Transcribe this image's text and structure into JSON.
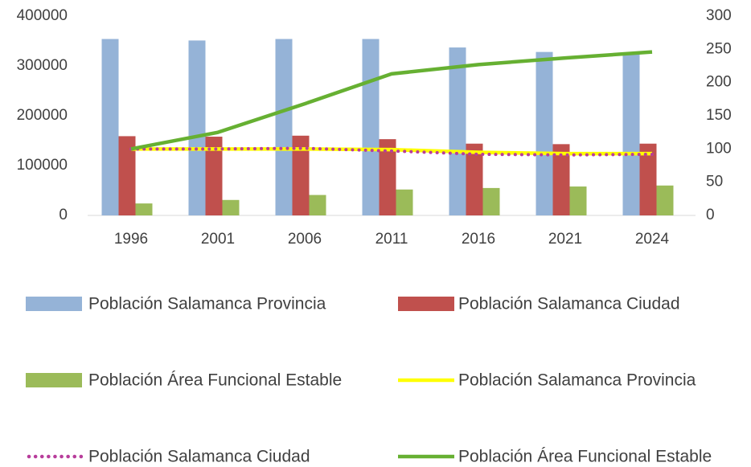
{
  "chart_data": {
    "type": "bar",
    "categories": [
      "1996",
      "2001",
      "2006",
      "2011",
      "2016",
      "2021",
      "2024"
    ],
    "ylim": [
      0,
      400000
    ],
    "yticks": [
      0,
      100000,
      200000,
      300000,
      400000
    ],
    "y2lim": [
      0,
      300
    ],
    "y2ticks": [
      0,
      50,
      100,
      150,
      200,
      250,
      300
    ],
    "grid": false,
    "series": [
      {
        "name": "Población Salamanca Provincia",
        "type": "bar",
        "color": "#95b3d7",
        "values": [
          354000,
          351000,
          354000,
          354000,
          337000,
          328000,
          327000
        ]
      },
      {
        "name": "Población Salamanca Ciudad",
        "type": "bar",
        "color": "#c0504d",
        "values": [
          159000,
          158000,
          160000,
          153000,
          144000,
          143000,
          144000
        ]
      },
      {
        "name": "Población Área Funcional Estable",
        "type": "bar",
        "color": "#9bbb59",
        "values": [
          24000,
          31000,
          41000,
          52000,
          55000,
          58000,
          60000
        ]
      },
      {
        "name": "Población Salamanca Provincia",
        "type": "line",
        "axis": "y2",
        "color": "#ffff00",
        "values": [
          100,
          100,
          100,
          99,
          95,
          93,
          93
        ]
      },
      {
        "name": "Población Salamanca Ciudad",
        "type": "line",
        "axis": "y2",
        "style": "dotted",
        "color": "#b83d9b",
        "values": [
          100,
          100,
          101,
          97,
          92,
          91,
          92
        ]
      },
      {
        "name": "Población Área Funcional Estable",
        "type": "line",
        "axis": "y2",
        "color": "#66b032",
        "values": [
          100,
          125,
          168,
          213,
          227,
          237,
          246
        ]
      }
    ]
  }
}
